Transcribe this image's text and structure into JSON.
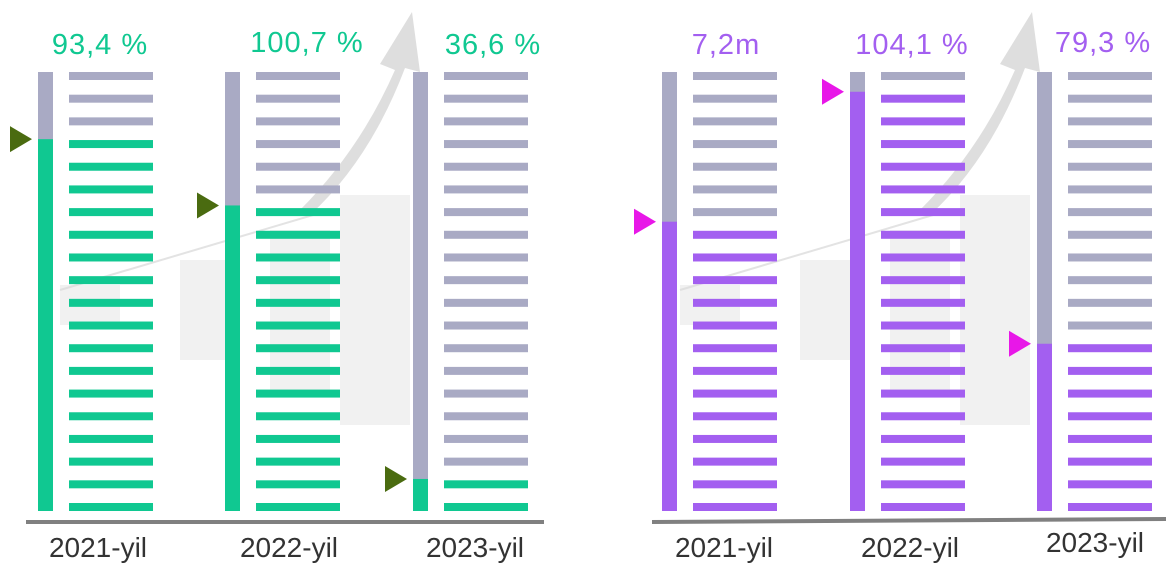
{
  "colors": {
    "inactive": "#a9aac4",
    "green": "#10c891",
    "green_marker": "#4a6b10",
    "purple": "#a35ff0",
    "purple_marker": "#e817e8",
    "axis": "#808080",
    "year_text": "#333333"
  },
  "chart_data": [
    {
      "type": "bar",
      "categories": [
        "2021-yil",
        "2022-yil",
        "2023-yil"
      ],
      "value_labels": [
        "93,4 %",
        "100,7 %",
        "36,6 %"
      ],
      "values": [
        84.7,
        69.6,
        7.3
      ],
      "ylim": [
        0,
        100
      ],
      "accent": "#10c891",
      "marker_color": "#4a6b10"
    },
    {
      "type": "bar",
      "categories": [
        "2021-yil",
        "2022-yil",
        "2023-yil"
      ],
      "value_labels": [
        "7,2m",
        "104,1 %",
        "79,3 %"
      ],
      "values": [
        65.9,
        95.5,
        38.1
      ],
      "ylim": [
        0,
        100
      ],
      "accent": "#a35ff0",
      "marker_color": "#e817e8"
    }
  ]
}
